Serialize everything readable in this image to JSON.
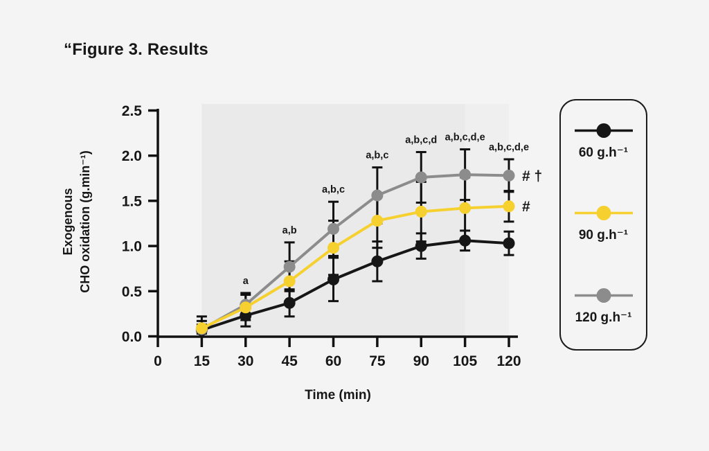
{
  "chart_data": {
    "type": "line",
    "title": "“Figure 3. Results",
    "xlabel": "Time (min)",
    "ylabel_lines": [
      "Exogenous",
      "CHO oxidation (g.min⁻¹)"
    ],
    "x": [
      15,
      30,
      45,
      60,
      75,
      90,
      105,
      120
    ],
    "x_ticks": [
      "0",
      "15",
      "30",
      "45",
      "60",
      "75",
      "90",
      "105",
      "120"
    ],
    "y_ticks": [
      "0.0",
      "0.5",
      "1.0",
      "1.5",
      "2.0",
      "2.5"
    ],
    "xlim": [
      0,
      120
    ],
    "ylim": [
      0,
      2.5
    ],
    "grid": "off",
    "legend_position": "right-outside",
    "error_bar_color": "#111111",
    "series": [
      {
        "key": "series-60",
        "name": "60 g.h⁻¹",
        "color": "#161616",
        "values": [
          0.07,
          0.23,
          0.37,
          0.63,
          0.83,
          1.0,
          1.06,
          1.03
        ],
        "errors": [
          0.1,
          0.12,
          0.15,
          0.24,
          0.22,
          0.14,
          0.11,
          0.13
        ],
        "end_marker": ""
      },
      {
        "key": "series-90",
        "name": "90 g.h⁻¹",
        "color": "#F5D02F",
        "values": [
          0.09,
          0.32,
          0.61,
          0.98,
          1.28,
          1.38,
          1.42,
          1.44
        ],
        "errors": [
          0.13,
          0.14,
          0.22,
          0.3,
          0.3,
          0.33,
          0.34,
          0.17
        ],
        "end_marker": "#"
      },
      {
        "key": "series-120",
        "name": "120 g.h⁻¹",
        "color": "#8C8C8C",
        "values": [
          0.08,
          0.35,
          0.77,
          1.19,
          1.56,
          1.76,
          1.79,
          1.78
        ],
        "errors": [
          0.05,
          0.13,
          0.27,
          0.3,
          0.31,
          0.28,
          0.28,
          0.18
        ],
        "end_marker": "# †"
      }
    ],
    "annotations": [
      {
        "x": 30,
        "label": "a"
      },
      {
        "x": 45,
        "label": "a,b"
      },
      {
        "x": 60,
        "label": "a,b,c"
      },
      {
        "x": 75,
        "label": "a,b,c"
      },
      {
        "x": 90,
        "label": "a,b,c,d"
      },
      {
        "x": 105,
        "label": "a,b,c,d,e"
      },
      {
        "x": 120,
        "label": "a,b,c,d,e"
      }
    ],
    "shaded_bands": [
      {
        "x0": 15,
        "x1": 105,
        "color": "#EAEAEA"
      },
      {
        "x0": 105,
        "x1": 120,
        "color": "#EFEFEF"
      }
    ],
    "colors": {
      "background": "#F4F4F4",
      "axis": "#111111",
      "text": "#161616"
    }
  }
}
